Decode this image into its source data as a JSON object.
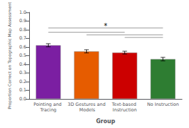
{
  "chart_data": {
    "type": "bar",
    "categories": [
      "Pointing and Tracing",
      "3D Gestures and Models",
      "Text-based Instruction",
      "No Instruction"
    ],
    "values": [
      0.62,
      0.55,
      0.535,
      0.46
    ],
    "errors": [
      0.018,
      0.018,
      0.016,
      0.02
    ],
    "colors": [
      "#7B1FA2",
      "#E65C00",
      "#CC0000",
      "#2E7D32"
    ],
    "xlabel": "Group",
    "ylabel": "Proportion Correct on Topographic Map Assessment",
    "ylim": [
      0,
      1.0
    ],
    "yticks": [
      {
        "value": 0.0,
        "label": "0.0"
      },
      0.1,
      0.2,
      0.3,
      0.4,
      0.5,
      0.6,
      0.7,
      0.8,
      0.9,
      {
        "value": 1.0,
        "label": "1.0"
      }
    ],
    "significance_lines": [
      {
        "start": "Pointing and Tracing",
        "end": "No Instruction",
        "y": 0.82,
        "label": "*"
      },
      {
        "start": "Pointing and Tracing",
        "end": "Text-based Instruction",
        "y": 0.77
      },
      {
        "start": "3D Gestures and Models",
        "end": "No Instruction",
        "y": 0.74
      },
      {
        "start": "Text-based Instruction",
        "end": "No Instruction",
        "y": 0.71
      }
    ],
    "grid": false
  }
}
